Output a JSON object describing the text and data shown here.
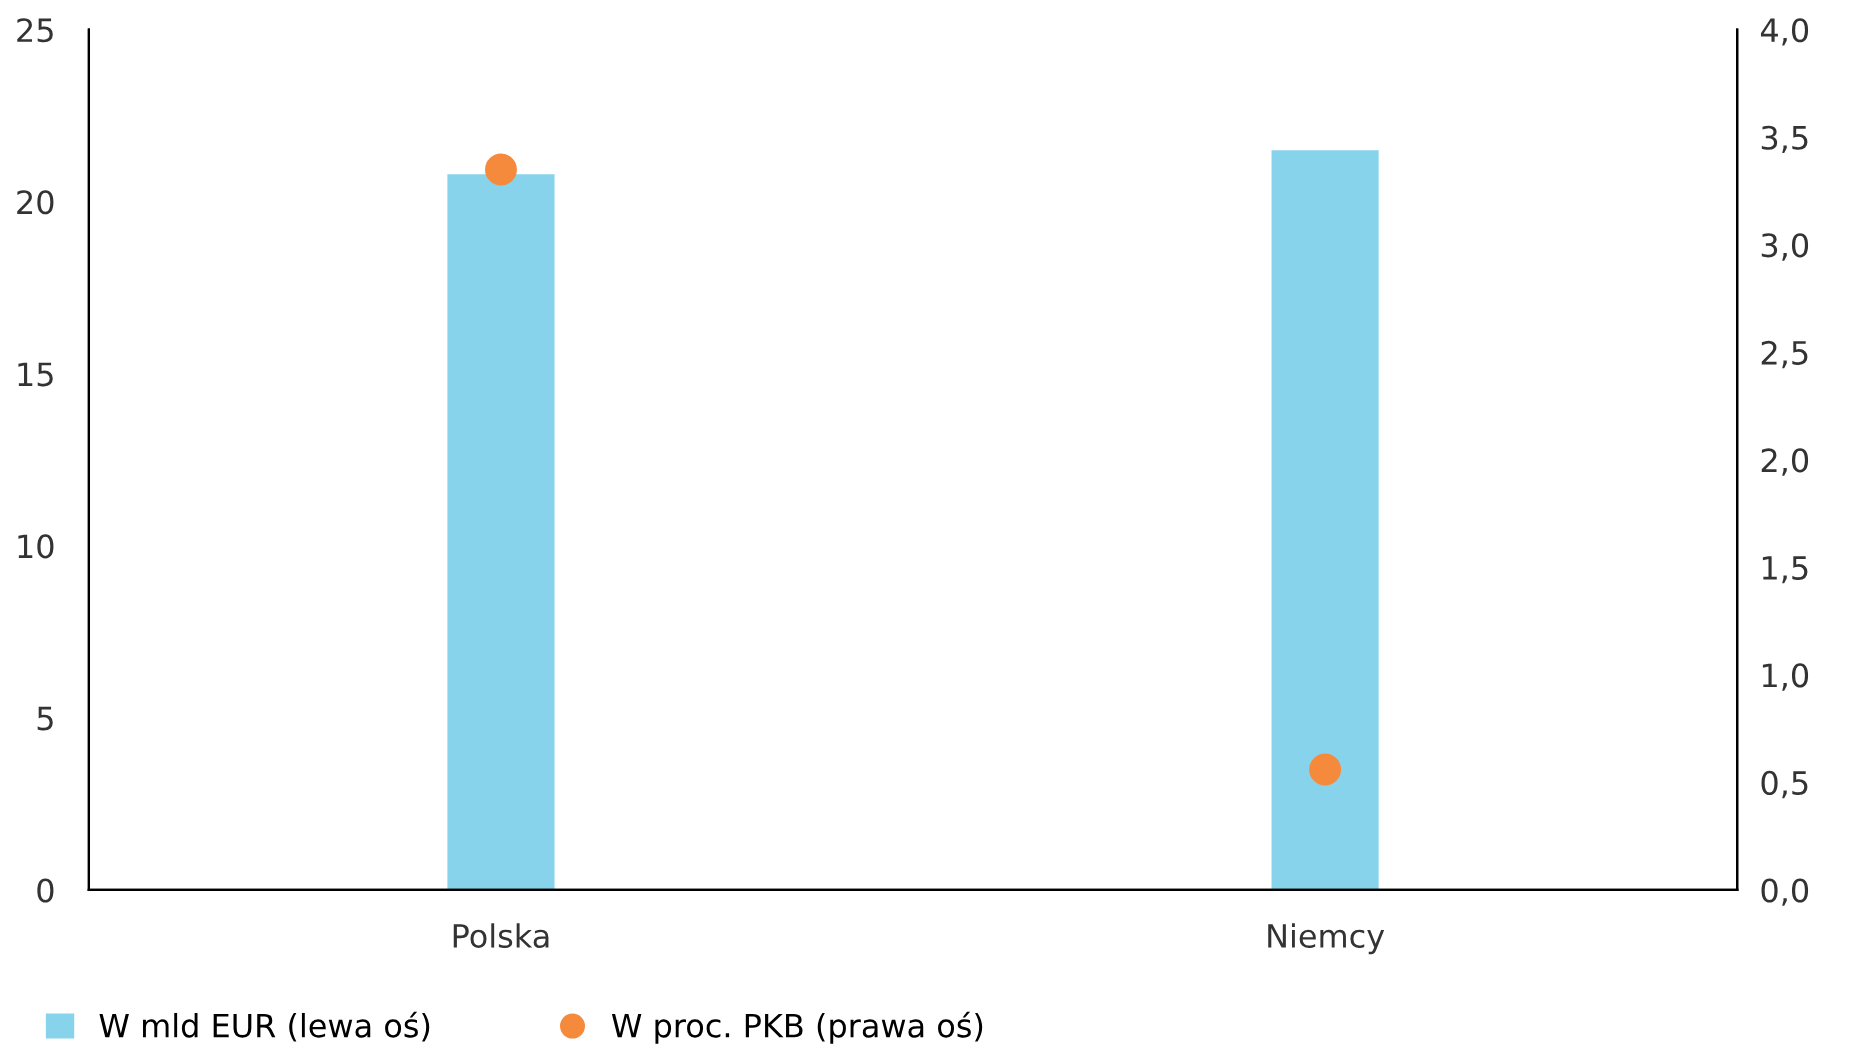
{
  "chart_data": {
    "type": "bar",
    "categories": [
      "Polska",
      "Niemcy"
    ],
    "series": [
      {
        "name": "W mld EUR (lewa oś)",
        "color": "#87d3ec",
        "values": [
          20.8,
          21.5
        ]
      },
      {
        "name": "W proc. PKB (prawa oś)",
        "type": "scatter",
        "axis": "y2",
        "color": "#f58a3c",
        "values": [
          3.35,
          0.56
        ]
      }
    ],
    "ylim": [
      0,
      25
    ],
    "yticks": [
      0,
      5,
      10,
      15,
      20,
      25
    ],
    "y2lim": [
      0,
      4
    ],
    "y2ticks": [
      {
        "value": 0,
        "label": "0,0"
      },
      {
        "value": 0.5,
        "label": "0,5"
      },
      {
        "value": 1,
        "label": "1,0"
      },
      {
        "value": 1.5,
        "label": "1,5"
      },
      {
        "value": 2,
        "label": "2,0"
      },
      {
        "value": 2.5,
        "label": "2,5"
      },
      {
        "value": 3,
        "label": "3,0"
      },
      {
        "value": 3.5,
        "label": "3,5"
      },
      {
        "value": 4,
        "label": "4,0"
      }
    ],
    "legend": "bottom",
    "grid": false,
    "marker": "circle"
  }
}
